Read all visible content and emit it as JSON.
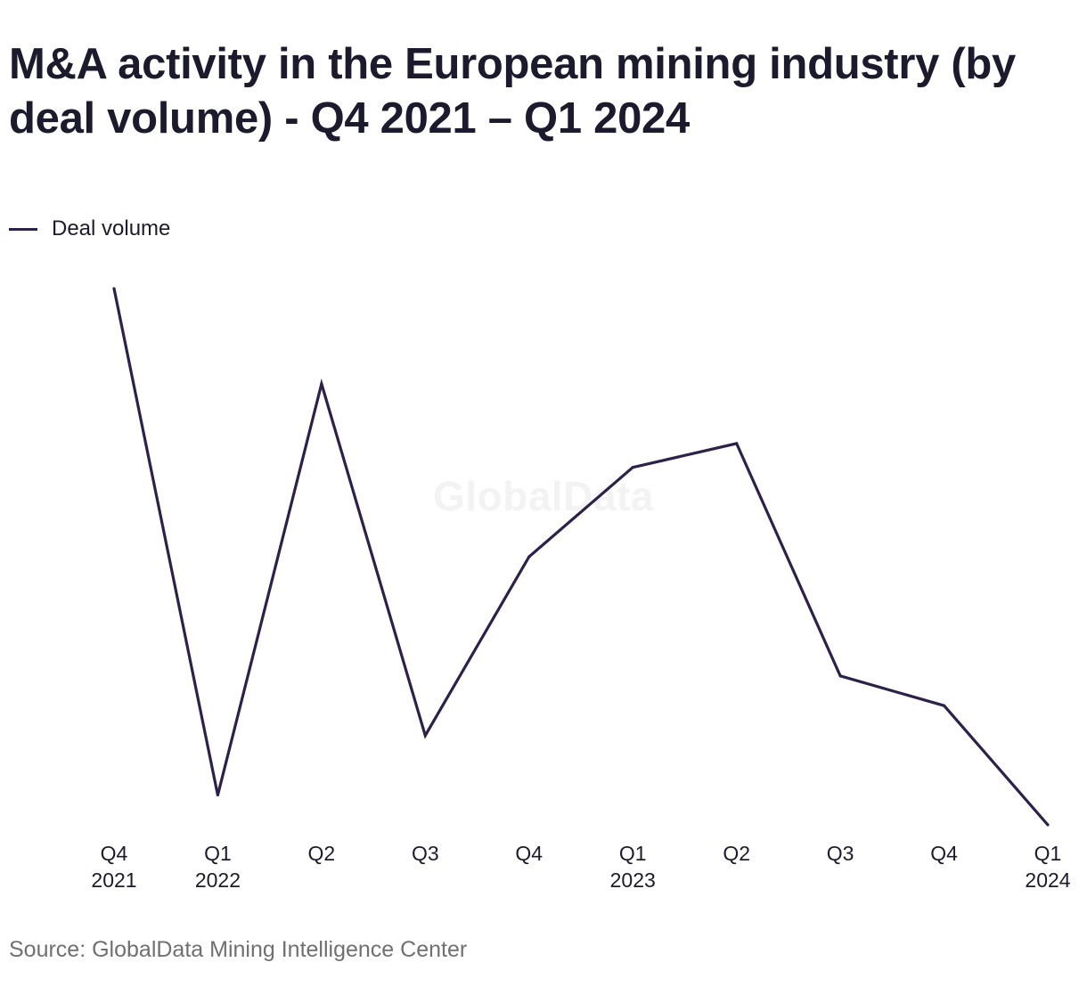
{
  "title": "M&A activity in the European mining industry (by deal volume) - Q4 2021 – Q1 2024",
  "legend": {
    "label": "Deal volume"
  },
  "watermark": "GlobalData",
  "source": "Source: GlobalData Mining Intelligence Center",
  "colors": {
    "line": "#2e2149",
    "text": "#1c1b2e",
    "source": "#707070"
  },
  "chart_data": {
    "type": "line",
    "title": "M&A activity in the European mining industry (by deal volume) - Q4 2021 – Q1 2024",
    "xlabel": "",
    "ylabel": "",
    "grid": false,
    "y_axis_shown": false,
    "legend_position": "top-left",
    "categories": [
      [
        "Q4",
        "2021"
      ],
      [
        "Q1",
        "2022"
      ],
      [
        "Q2",
        ""
      ],
      [
        "Q3",
        ""
      ],
      [
        "Q4",
        ""
      ],
      [
        "Q1",
        "2023"
      ],
      [
        "Q2",
        ""
      ],
      [
        "Q3",
        ""
      ],
      [
        "Q4",
        ""
      ],
      [
        "Q1",
        "2024"
      ]
    ],
    "series": [
      {
        "name": "Deal volume",
        "values": [
          100,
          15,
          84,
          25,
          55,
          70,
          74,
          35,
          30,
          10
        ]
      }
    ],
    "ylim": [
      10,
      100
    ]
  }
}
